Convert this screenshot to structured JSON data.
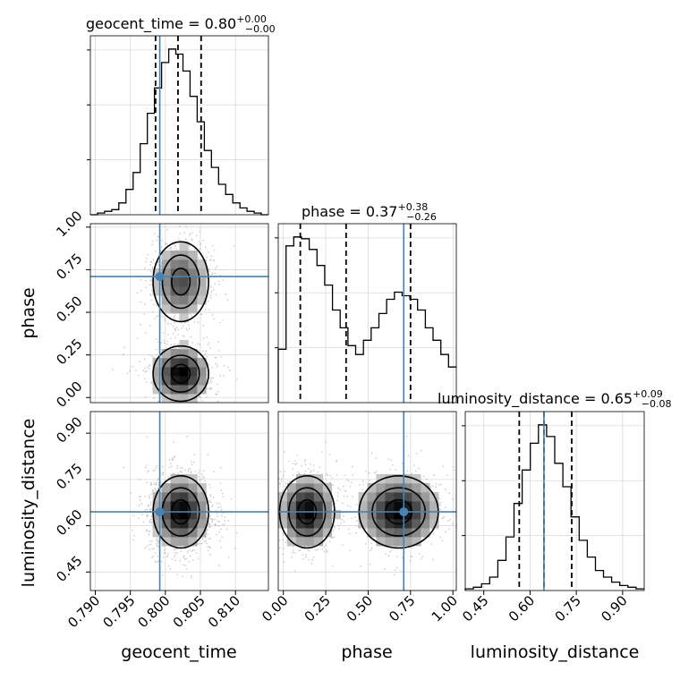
{
  "chart_data": {
    "type": "corner",
    "parameters": [
      "geocent_time",
      "phase",
      "luminosity_distance"
    ],
    "truths": {
      "geocent_time": 0.7992,
      "phase": 0.71,
      "luminosity_distance": 0.645
    },
    "ranges": {
      "geocent_time": [
        0.7893,
        0.8147
      ],
      "phase": [
        -0.03,
        1.02
      ],
      "luminosity_distance": [
        0.39,
        0.97
      ]
    },
    "titles": [
      {
        "param": "geocent_time",
        "label": "geocent_time = 0.80",
        "plus": "+0.00",
        "minus": "−0.00"
      },
      {
        "param": "phase",
        "label": "phase = 0.37",
        "plus": "+0.38",
        "minus": "−0.26"
      },
      {
        "param": "luminosity_distance",
        "label": "luminosity_distance = 0.65",
        "plus": "+0.09",
        "minus": "−0.08"
      }
    ],
    "quantiles": {
      "geocent_time": [
        0.7986,
        0.8018,
        0.8051
      ],
      "phase": [
        0.1,
        0.37,
        0.75
      ],
      "luminosity_distance": [
        0.565,
        0.645,
        0.735
      ]
    },
    "ticks": {
      "geocent_time": [
        0.79,
        0.795,
        0.8,
        0.805,
        0.81
      ],
      "phase": [
        0.0,
        0.25,
        0.5,
        0.75,
        1.0
      ],
      "luminosity_distance": [
        0.45,
        0.6,
        0.75,
        0.9
      ]
    },
    "tick_labels": {
      "geocent_time": [
        "0.790",
        "0.795",
        "0.800",
        "0.805",
        "0.810"
      ],
      "phase": [
        "0.00",
        "0.25",
        "0.50",
        "0.75",
        "1.00"
      ],
      "luminosity_distance": [
        "0.45",
        "0.60",
        "0.75",
        "0.90"
      ]
    },
    "histograms": {
      "geocent_time": [
        0,
        1,
        2,
        3,
        7,
        15,
        25,
        42,
        60,
        75,
        90,
        98,
        95,
        85,
        70,
        55,
        38,
        28,
        18,
        12,
        7,
        4,
        2,
        1,
        0
      ],
      "phase": [
        30,
        88,
        93,
        92,
        86,
        77,
        66,
        52,
        42,
        32,
        27,
        35,
        42,
        50,
        58,
        62,
        60,
        58,
        52,
        42,
        35,
        27,
        20
      ],
      "luminosity_distance": [
        1,
        2,
        4,
        8,
        18,
        32,
        52,
        72,
        88,
        99,
        92,
        76,
        62,
        44,
        30,
        20,
        12,
        8,
        5,
        3,
        2,
        1
      ]
    },
    "grid": true
  }
}
